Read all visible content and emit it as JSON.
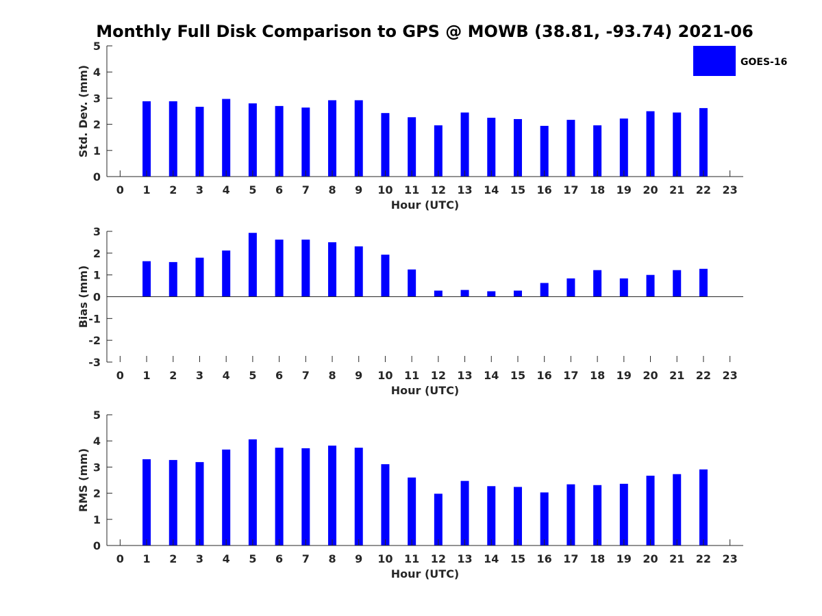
{
  "chart_data": {
    "title": "Monthly Full Disk Comparison to GPS @ MOWB (38.81, -93.74) 2021-06",
    "legend": {
      "label": "GOES-16",
      "color": "#0000ff",
      "placement": "top-right"
    },
    "panels": [
      {
        "id": "std",
        "type": "bar",
        "xlabel": "Hour (UTC)",
        "ylabel": "Std. Dev. (mm)",
        "ylim": [
          0,
          5
        ],
        "yticks": [
          0,
          1,
          2,
          3,
          4,
          5
        ],
        "x": [
          0,
          1,
          2,
          3,
          4,
          5,
          6,
          7,
          8,
          9,
          10,
          11,
          12,
          13,
          14,
          15,
          16,
          17,
          18,
          19,
          20,
          21,
          22,
          23
        ],
        "values": [
          null,
          2.88,
          2.88,
          2.67,
          2.97,
          2.8,
          2.7,
          2.64,
          2.92,
          2.92,
          2.43,
          2.27,
          1.96,
          2.45,
          2.25,
          2.2,
          1.94,
          2.17,
          1.96,
          2.22,
          2.5,
          2.45,
          2.62,
          null
        ],
        "grid": false
      },
      {
        "id": "bias",
        "type": "bar",
        "xlabel": "Hour (UTC)",
        "ylabel": "Bias (mm)",
        "ylim": [
          -3,
          3
        ],
        "yticks": [
          -3,
          -2,
          -1,
          0,
          1,
          2,
          3
        ],
        "x": [
          0,
          1,
          2,
          3,
          4,
          5,
          6,
          7,
          8,
          9,
          10,
          11,
          12,
          13,
          14,
          15,
          16,
          17,
          18,
          19,
          20,
          21,
          22,
          23
        ],
        "values": [
          null,
          1.63,
          1.59,
          1.79,
          2.12,
          2.93,
          2.62,
          2.62,
          2.5,
          2.31,
          1.93,
          1.25,
          0.28,
          0.31,
          0.25,
          0.28,
          0.63,
          0.84,
          1.22,
          0.84,
          1.0,
          1.22,
          1.28,
          null
        ],
        "grid": false
      },
      {
        "id": "rms",
        "type": "bar",
        "xlabel": "Hour (UTC)",
        "ylabel": "RMS (mm)",
        "ylim": [
          0,
          5
        ],
        "yticks": [
          0,
          1,
          2,
          3,
          4,
          5
        ],
        "x": [
          0,
          1,
          2,
          3,
          4,
          5,
          6,
          7,
          8,
          9,
          10,
          11,
          12,
          13,
          14,
          15,
          16,
          17,
          18,
          19,
          20,
          21,
          22,
          23
        ],
        "values": [
          null,
          3.3,
          3.27,
          3.19,
          3.67,
          4.06,
          3.74,
          3.72,
          3.82,
          3.74,
          3.11,
          2.6,
          1.98,
          2.47,
          2.27,
          2.24,
          2.03,
          2.34,
          2.31,
          2.36,
          2.67,
          2.73,
          2.91,
          null
        ],
        "grid": false
      }
    ]
  }
}
